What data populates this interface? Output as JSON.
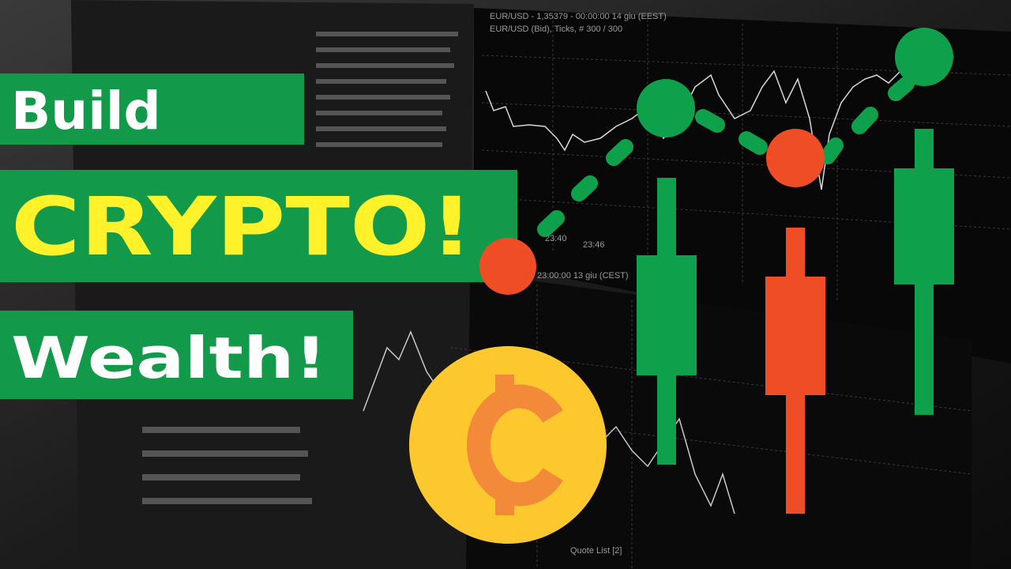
{
  "headline": {
    "line1": "Build",
    "line2": "CRYPTO!",
    "line3": "Wealth!"
  },
  "screen": {
    "chart_header": "EUR/USD - 1,35379 - 00:00:00 14 giu (EEST)",
    "chart_subheader": "EUR/USD (Bid), Ticks, # 300 / 300",
    "time_label_1": "23:40",
    "time_label_2": "23:46",
    "lower_header": "23:00:00 13 giu (CEST)",
    "quote_list": "Quote List [2]"
  }
}
